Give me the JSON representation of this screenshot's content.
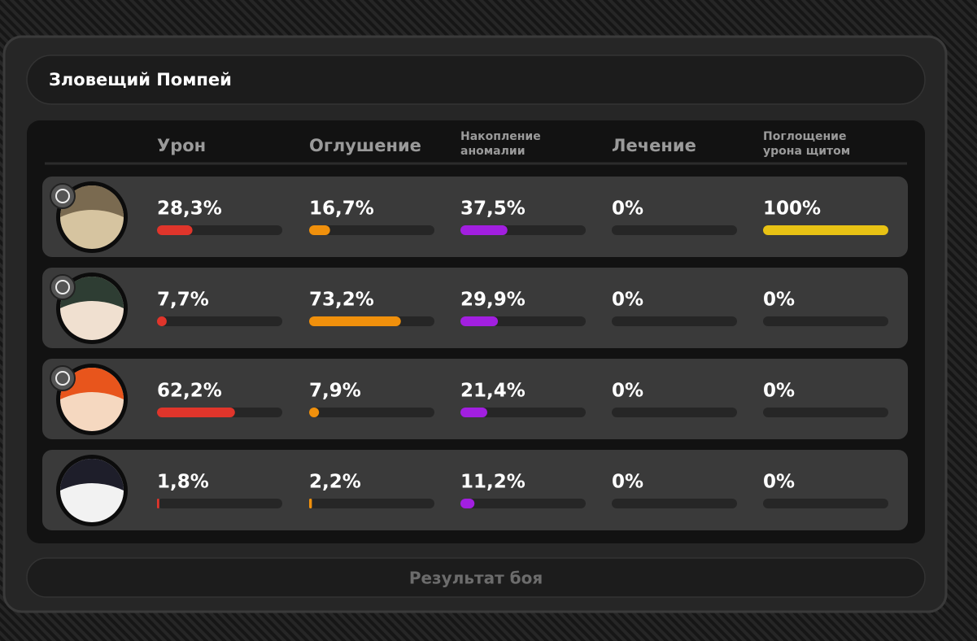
{
  "title": "Зловещий Помпей",
  "columns": [
    {
      "label": [
        "Урон"
      ],
      "color": "#e0352b"
    },
    {
      "label": [
        "Оглушение"
      ],
      "color": "#f0900c"
    },
    {
      "label": [
        "Накопление",
        "аномалии"
      ],
      "color": "#a21fe0"
    },
    {
      "label": [
        "Лечение"
      ],
      "color": "#3cc060"
    },
    {
      "label": [
        "Поглощение",
        "урона щитом"
      ],
      "color": "#e8c214"
    }
  ],
  "xlim": [
    0,
    100
  ],
  "rows": [
    {
      "values": [
        28.3,
        16.7,
        37.5,
        0,
        100
      ],
      "value_labels": [
        "28,3%",
        "16,7%",
        "37,5%",
        "0%",
        "100%"
      ]
    },
    {
      "values": [
        7.7,
        73.2,
        29.9,
        0,
        0
      ],
      "value_labels": [
        "7,7%",
        "73,2%",
        "29,9%",
        "0%",
        "0%"
      ]
    },
    {
      "values": [
        62.2,
        7.9,
        21.4,
        0,
        0
      ],
      "value_labels": [
        "62,2%",
        "7,9%",
        "21,4%",
        "0%",
        "0%"
      ]
    },
    {
      "values": [
        1.8,
        2.2,
        11.2,
        0,
        0
      ],
      "value_labels": [
        "1,8%",
        "2,2%",
        "11,2%",
        "0%",
        "0%"
      ]
    }
  ],
  "footer": "Результат боя"
}
